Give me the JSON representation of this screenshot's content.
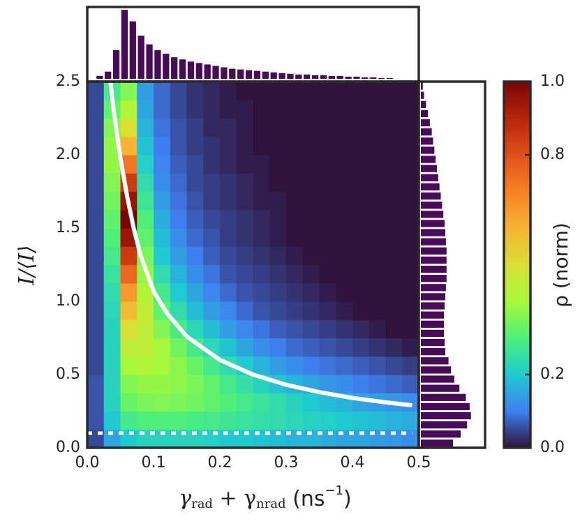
{
  "chart_data": [
    {
      "type": "heatmap",
      "xlabel": [
        "γ",
        "rad",
        " + γ",
        "nrad",
        " (ns",
        "−1",
        ")"
      ],
      "ylabel": "I/⟨I⟩",
      "colorbar_label": "ρ (norm)",
      "xlim": [
        0,
        0.5
      ],
      "ylim": [
        0,
        2.5
      ],
      "zlim": [
        0,
        1
      ],
      "xticks": [
        {
          "value": 0,
          "label": "0.0"
        },
        0.1,
        0.2,
        0.3,
        0.4,
        0.5
      ],
      "yticks": [
        {
          "value": 0,
          "label": "0.0"
        },
        0.5,
        {
          "value": 1,
          "label": "1.0"
        },
        1.5,
        {
          "value": 2,
          "label": "2.0"
        },
        2.5
      ],
      "zticks": [
        {
          "value": 0,
          "label": "0.0"
        },
        0.2,
        0.8,
        {
          "value": 1,
          "label": "1.0"
        }
      ],
      "colorscale": [
        "#30123b",
        "#3e7ff0",
        "#1fcbd0",
        "#4ef07a",
        "#a6f93a",
        "#d8e035",
        "#f7b335",
        "#f78025",
        "#e0501a",
        "#b5250a",
        "#7a0403"
      ],
      "xbins": [
        0,
        0.025,
        0.05,
        0.075,
        0.1,
        0.125,
        0.15,
        0.175,
        0.2,
        0.225,
        0.25,
        0.275,
        0.3,
        0.325,
        0.35,
        0.375,
        0.4,
        0.425,
        0.45,
        0.475,
        0.5
      ],
      "ybins": [
        0,
        0.125,
        0.25,
        0.375,
        0.5,
        0.625,
        0.75,
        0.875,
        1,
        1.125,
        1.25,
        1.375,
        1.5,
        1.625,
        1.75,
        1.875,
        2,
        2.125,
        2.25,
        2.375,
        2.5
      ],
      "values": [
        [
          0.05,
          0.15,
          0.2,
          0.22,
          0.22,
          0.22,
          0.22,
          0.21,
          0.2,
          0.2,
          0.19,
          0.18,
          0.17,
          0.17,
          0.16,
          0.15,
          0.15,
          0.14,
          0.13,
          0.12
        ],
        [
          0.06,
          0.2,
          0.28,
          0.3,
          0.3,
          0.3,
          0.29,
          0.28,
          0.27,
          0.26,
          0.25,
          0.24,
          0.23,
          0.22,
          0.21,
          0.2,
          0.19,
          0.18,
          0.17,
          0.16
        ],
        [
          0.06,
          0.22,
          0.33,
          0.35,
          0.36,
          0.35,
          0.34,
          0.32,
          0.3,
          0.28,
          0.26,
          0.24,
          0.22,
          0.2,
          0.18,
          0.17,
          0.15,
          0.14,
          0.13,
          0.12
        ],
        [
          0.06,
          0.22,
          0.36,
          0.38,
          0.38,
          0.37,
          0.35,
          0.32,
          0.28,
          0.25,
          0.22,
          0.19,
          0.17,
          0.15,
          0.13,
          0.12,
          0.1,
          0.09,
          0.08,
          0.07
        ],
        [
          0.05,
          0.22,
          0.4,
          0.42,
          0.4,
          0.37,
          0.33,
          0.28,
          0.24,
          0.2,
          0.17,
          0.14,
          0.12,
          0.1,
          0.09,
          0.08,
          0.07,
          0.06,
          0.05,
          0.04
        ],
        [
          0.05,
          0.22,
          0.45,
          0.45,
          0.4,
          0.34,
          0.28,
          0.23,
          0.19,
          0.15,
          0.12,
          0.1,
          0.08,
          0.07,
          0.06,
          0.05,
          0.04,
          0.03,
          0.02,
          0.01
        ],
        [
          0.05,
          0.22,
          0.5,
          0.45,
          0.36,
          0.29,
          0.23,
          0.18,
          0.14,
          0.11,
          0.09,
          0.07,
          0.06,
          0.05,
          0.04,
          0.03,
          0.02,
          0.01,
          0,
          0
        ],
        [
          0.05,
          0.23,
          0.58,
          0.45,
          0.32,
          0.24,
          0.18,
          0.14,
          0.11,
          0.08,
          0.06,
          0.05,
          0.04,
          0.03,
          0.02,
          0.01,
          0,
          0,
          0,
          0
        ],
        [
          0.05,
          0.24,
          0.65,
          0.42,
          0.28,
          0.2,
          0.15,
          0.11,
          0.08,
          0.06,
          0.05,
          0.04,
          0.03,
          0.02,
          0.01,
          0,
          0,
          0,
          0,
          0
        ],
        [
          0.05,
          0.26,
          0.75,
          0.38,
          0.24,
          0.17,
          0.12,
          0.09,
          0.06,
          0.05,
          0.04,
          0.03,
          0.02,
          0.01,
          0,
          0,
          0,
          0,
          0,
          0
        ],
        [
          0.05,
          0.28,
          0.85,
          0.35,
          0.2,
          0.14,
          0.1,
          0.07,
          0.05,
          0.04,
          0.03,
          0.02,
          0.01,
          0,
          0,
          0,
          0,
          0,
          0,
          0
        ],
        [
          0.05,
          0.3,
          0.95,
          0.32,
          0.18,
          0.12,
          0.08,
          0.06,
          0.04,
          0.03,
          0.02,
          0.01,
          0,
          0,
          0,
          0,
          0,
          0,
          0,
          0
        ],
        [
          0.05,
          0.32,
          1.0,
          0.3,
          0.16,
          0.1,
          0.07,
          0.05,
          0.04,
          0.03,
          0.02,
          0.01,
          0,
          0,
          0,
          0,
          0,
          0,
          0,
          0
        ],
        [
          0.05,
          0.34,
          0.95,
          0.27,
          0.14,
          0.09,
          0.06,
          0.04,
          0.03,
          0.02,
          0.01,
          0.01,
          0,
          0,
          0,
          0,
          0,
          0,
          0,
          0
        ],
        [
          0.05,
          0.36,
          0.85,
          0.24,
          0.12,
          0.08,
          0.05,
          0.04,
          0.03,
          0.02,
          0.01,
          0,
          0,
          0,
          0,
          0,
          0,
          0,
          0,
          0
        ],
        [
          0.05,
          0.38,
          0.72,
          0.21,
          0.11,
          0.07,
          0.05,
          0.03,
          0.02,
          0.01,
          0.01,
          0,
          0,
          0,
          0,
          0,
          0,
          0,
          0,
          0
        ],
        [
          0.05,
          0.38,
          0.6,
          0.19,
          0.1,
          0.06,
          0.04,
          0.03,
          0.02,
          0.01,
          0,
          0,
          0,
          0,
          0,
          0,
          0,
          0,
          0,
          0
        ],
        [
          0.05,
          0.36,
          0.5,
          0.17,
          0.09,
          0.06,
          0.04,
          0.02,
          0.02,
          0.01,
          0,
          0,
          0,
          0,
          0,
          0,
          0,
          0,
          0,
          0
        ],
        [
          0.05,
          0.32,
          0.42,
          0.15,
          0.08,
          0.05,
          0.03,
          0.02,
          0.01,
          0.01,
          0,
          0,
          0,
          0,
          0,
          0,
          0,
          0,
          0,
          0
        ],
        [
          0.05,
          0.28,
          0.36,
          0.14,
          0.08,
          0.05,
          0.03,
          0.02,
          0.01,
          0,
          0,
          0,
          0,
          0,
          0,
          0,
          0,
          0,
          0,
          0
        ]
      ],
      "lines": [
        {
          "color": "#ffffff",
          "style": "solid",
          "x": [
            0.035,
            0.04,
            0.05,
            0.06,
            0.07,
            0.08,
            0.1,
            0.12,
            0.15,
            0.2,
            0.25,
            0.3,
            0.35,
            0.4,
            0.45,
            0.49
          ],
          "y": [
            2.5,
            2.3,
            1.98,
            1.72,
            1.5,
            1.32,
            1.07,
            0.92,
            0.76,
            0.6,
            0.5,
            0.43,
            0.38,
            0.34,
            0.31,
            0.29
          ]
        },
        {
          "color": "#ffffff",
          "style": "dotted",
          "x": [
            0,
            0.49
          ],
          "y": [
            0.1,
            0.1
          ]
        }
      ]
    },
    {
      "type": "histogram",
      "orientation": "vertical",
      "color": "#4a0a5a",
      "ylim": [
        0,
        100
      ],
      "bins": [
        0,
        0.0125,
        0.025,
        0.0375,
        0.05,
        0.0625,
        0.075,
        0.0875,
        0.1,
        0.1125,
        0.125,
        0.1375,
        0.15,
        0.1625,
        0.175,
        0.1875,
        0.2,
        0.2125,
        0.225,
        0.2375,
        0.25,
        0.2625,
        0.275,
        0.2875,
        0.3,
        0.3125,
        0.325,
        0.3375,
        0.35,
        0.3625,
        0.375,
        0.3875,
        0.4,
        0.4125,
        0.425,
        0.4375,
        0.45,
        0.4625,
        0.475,
        0.4875,
        0.5
      ],
      "counts": [
        0,
        4,
        10,
        40,
        96,
        80,
        60,
        48,
        40,
        35,
        30,
        27,
        24,
        22,
        20,
        18,
        16,
        14,
        13,
        12,
        11,
        10,
        9,
        8,
        7,
        6,
        6,
        5,
        5,
        4,
        4,
        3,
        3,
        2,
        2,
        1,
        1,
        0,
        0,
        0
      ]
    },
    {
      "type": "histogram",
      "orientation": "horizontal",
      "color": "#4a0a5a",
      "xlim": [
        0,
        100
      ],
      "bins": [
        0,
        0.0625,
        0.125,
        0.1875,
        0.25,
        0.3125,
        0.375,
        0.4375,
        0.5,
        0.5625,
        0.625,
        0.6875,
        0.75,
        0.8125,
        0.875,
        0.9375,
        1,
        1.0625,
        1.125,
        1.1875,
        1.25,
        1.3125,
        1.375,
        1.4375,
        1.5,
        1.5625,
        1.625,
        1.6875,
        1.75,
        1.8125,
        1.875,
        1.9375,
        2,
        2.0625,
        2.125,
        2.1875,
        2.25,
        2.3125,
        2.375,
        2.4375,
        2.5
      ],
      "counts": [
        50,
        62,
        72,
        78,
        76,
        70,
        60,
        52,
        47,
        43,
        38,
        37,
        36,
        36,
        36,
        37,
        38,
        39,
        40,
        40,
        40,
        40,
        39,
        38,
        37,
        35,
        33,
        31,
        29,
        27,
        25,
        23,
        21,
        19,
        17,
        14,
        11,
        8,
        5,
        3
      ]
    }
  ]
}
